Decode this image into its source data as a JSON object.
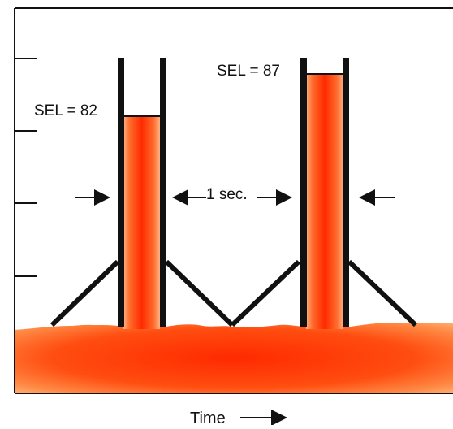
{
  "diagram": {
    "labels": {
      "sel_1": "SEL = 82",
      "sel_2": "SEL = 87",
      "interval": "1 sec.",
      "time_axis": "Time"
    },
    "icons": {
      "left_marker": "arrow-right-icon",
      "interval_left": "arrow-left-icon",
      "interval_right": "arrow-right-icon",
      "right_marker": "arrow-left-icon",
      "time_arrow": "arrow-right-icon"
    },
    "colors": {
      "fill_core": "#ff2a00",
      "fill_mid": "#ff5a1a",
      "fill_edge": "#ffb070",
      "line": "#111111",
      "frame": "#111111",
      "background": "#ffffff"
    }
  }
}
